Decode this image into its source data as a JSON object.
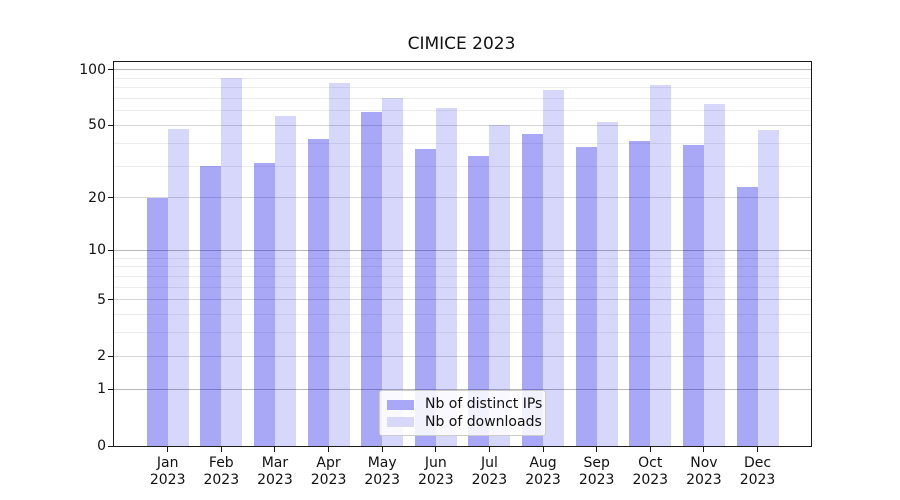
{
  "chart_data": {
    "type": "bar",
    "title": "CIMICE 2023",
    "categories": [
      "Jan 2023",
      "Feb 2023",
      "Mar 2023",
      "Apr 2023",
      "May 2023",
      "Jun 2023",
      "Jul 2023",
      "Aug 2023",
      "Sep 2023",
      "Oct 2023",
      "Nov 2023",
      "Dec 2023"
    ],
    "series": [
      {
        "name": "Nb of distinct IPs",
        "swatch_color": "#a8a8f6",
        "fill": "rgba(0,0,230,0.34)",
        "values": [
          20,
          30,
          31,
          42,
          59,
          37,
          34,
          45,
          38,
          41,
          39,
          23
        ]
      },
      {
        "name": "Nb of downloads",
        "swatch_color": "#d8d8fa",
        "fill": "rgba(0,0,230,0.155)",
        "values": [
          48,
          90,
          56,
          85,
          70,
          62,
          50,
          78,
          52,
          83,
          65,
          47
        ]
      }
    ],
    "xlabel": "",
    "ylabel": "",
    "yscale": "log1p",
    "ylim": [
      0,
      110
    ],
    "yticks": [
      0,
      1,
      2,
      5,
      10,
      20,
      50,
      100
    ],
    "yticklabels": [
      "0",
      "1",
      "2",
      "5",
      "10",
      "20",
      "50",
      "100"
    ],
    "yticks_minor": [
      3,
      4,
      6,
      7,
      8,
      9,
      30,
      40,
      60,
      70,
      80,
      90
    ],
    "grid": true,
    "legend_position": "lower center"
  },
  "colors": {
    "bar_distinct_ips": "#a8a8f6",
    "bar_downloads": "#d8d8fa",
    "grid_decade": "#b8b8b8",
    "grid_major": "#d7d7d7",
    "grid_minor": "#ececec",
    "spine": "#1a1a1a",
    "background": "#ffffff"
  }
}
